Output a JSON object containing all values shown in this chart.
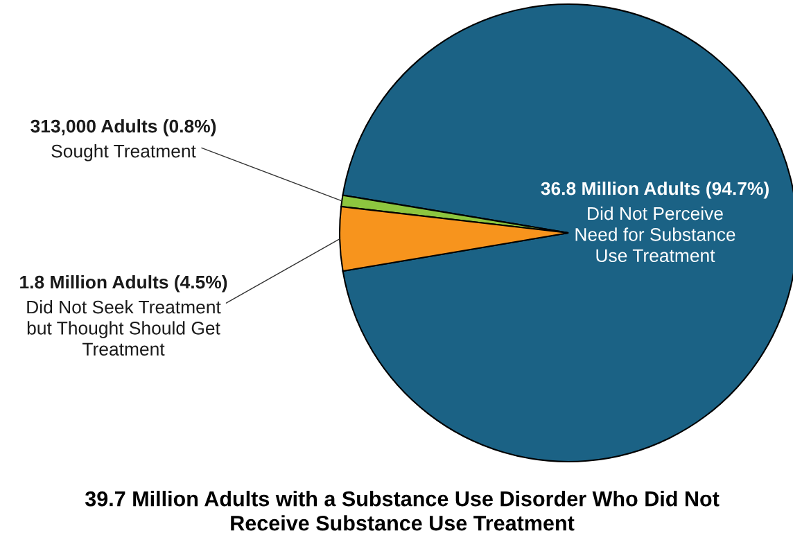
{
  "chart_data": {
    "type": "pie",
    "title": "39.7 Million Adults with a Substance Use Disorder Who Did Not\nReceive Substance Use Treatment",
    "categories": [
      "Did Not Perceive\nNeed for Substance\nUse Treatment",
      "Sought Treatment",
      "Did Not Seek Treatment\nbut Thought Should Get\nTreatment"
    ],
    "values": [
      94.7,
      0.8,
      4.5
    ],
    "colors": [
      "#1b6285",
      "#8dc63f",
      "#f7941d"
    ],
    "value_labels": [
      "36.8 Million Adults (94.7%)",
      "313,000 Adults (0.8%)",
      "1.8 Million Adults (4.5%)"
    ],
    "legend": false
  }
}
